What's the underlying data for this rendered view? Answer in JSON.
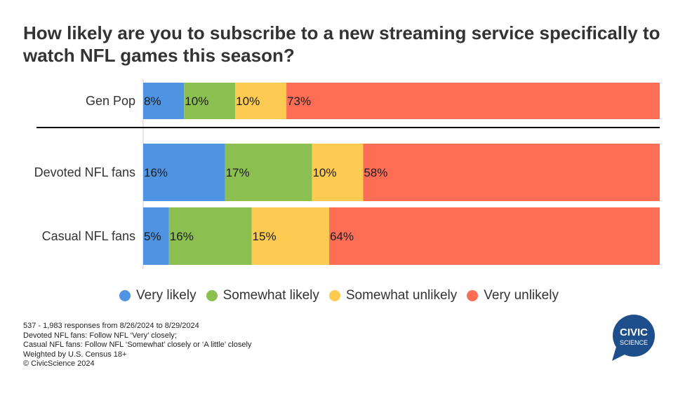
{
  "title": "How likely are you to subscribe to a new streaming service specifically to watch NFL games this season?",
  "colors": {
    "very_likely": "#4f94e3",
    "somewhat_likely": "#8bc051",
    "somewhat_unlikely": "#fecb52",
    "very_unlikely": "#fe6e56",
    "logo": "#1e4f8c"
  },
  "chart_data": {
    "type": "bar",
    "orientation": "horizontal",
    "stacked": true,
    "categories": [
      "Gen Pop",
      "Devoted NFL fans",
      "Casual NFL fans"
    ],
    "series": [
      {
        "name": "Very likely",
        "values": [
          8,
          16,
          5
        ],
        "labels": [
          "8%",
          "16%",
          "5%"
        ]
      },
      {
        "name": "Somewhat likely",
        "values": [
          10,
          17,
          16
        ],
        "labels": [
          "10%",
          "17%",
          "16%"
        ]
      },
      {
        "name": "Somewhat unlikely",
        "values": [
          10,
          10,
          15
        ],
        "labels": [
          "10%",
          "10%",
          "15%"
        ]
      },
      {
        "name": "Very unlikely",
        "values": [
          73,
          58,
          64
        ],
        "labels": [
          "73%",
          "58%",
          "64%"
        ]
      }
    ],
    "xlim": [
      0,
      100
    ],
    "legend_position": "bottom"
  },
  "footnotes": [
    "537 - 1,983 responses from 8/26/2024 to 8/29/2024",
    "Devoted NFL fans: Follow NFL ‘Very’ closely;",
    "Casual NFL fans: Follow NFL ‘Somewhat’ closely or ‘A little’ closely",
    "Weighted by U.S. Census 18+",
    "© CivicScience 2024"
  ],
  "logo": {
    "line1": "CIVIC",
    "line2": "SCIENCE"
  }
}
